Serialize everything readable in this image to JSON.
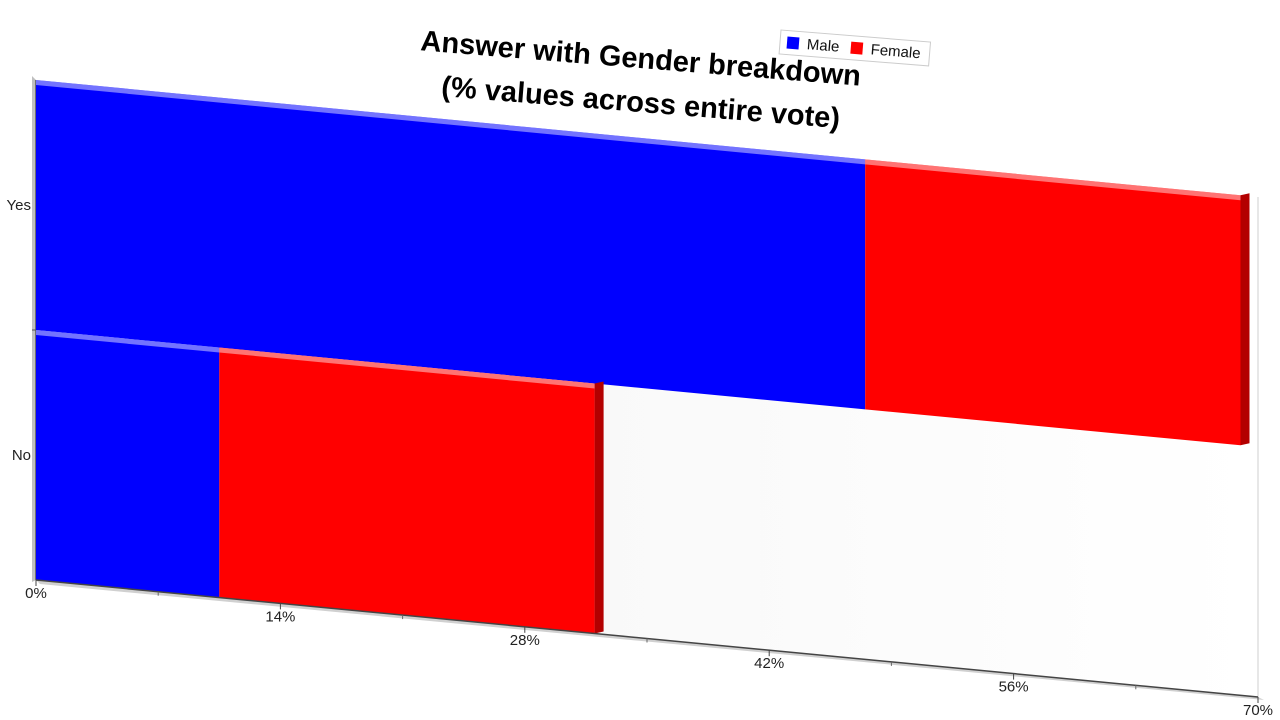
{
  "chart_data": {
    "type": "bar",
    "orientation": "horizontal",
    "stacked": true,
    "title": [
      "Answer with Gender breakdown",
      "(% values across entire vote)"
    ],
    "categories": [
      "Yes",
      "No"
    ],
    "series": [
      {
        "name": "Male",
        "color": "#0000ff",
        "values": [
          47.5,
          10.5
        ]
      },
      {
        "name": "Female",
        "color": "#ff0000",
        "values": [
          21.5,
          21.5
        ]
      }
    ],
    "x_ticks": [
      "0%",
      "14%",
      "28%",
      "42%",
      "56%",
      "70%"
    ],
    "xlim": [
      0,
      70
    ],
    "legend_position": "top-right",
    "grid": false
  }
}
